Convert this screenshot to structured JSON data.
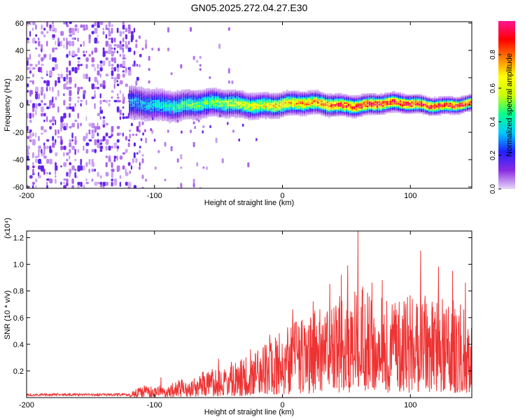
{
  "chart_data": [
    {
      "type": "heatmap",
      "title": "GN05.2025.272.04.27.E30",
      "xlabel": "Height of straight line (km)",
      "ylabel": "Frequency (Hz)",
      "xlim": [
        -200,
        148
      ],
      "ylim": [
        -61,
        61
      ],
      "xticks": [
        {
          "value": -200,
          "label": "-200"
        },
        {
          "value": -100,
          "label": "-100"
        },
        {
          "value": 0,
          "label": "0"
        },
        {
          "value": 100,
          "label": "100"
        }
      ],
      "yticks": [
        {
          "value": 60,
          "label": "60"
        },
        {
          "value": 40,
          "label": "40"
        },
        {
          "value": 20,
          "label": "20"
        },
        {
          "value": 0,
          "label": "0"
        },
        {
          "value": -20,
          "label": "-20"
        },
        {
          "value": -40,
          "label": "-40"
        },
        {
          "value": -60,
          "label": "-60"
        }
      ],
      "colorbar": {
        "label": "Normalized spectral amplitude",
        "range": [
          0,
          1
        ],
        "ticks": [
          {
            "value": 0.0,
            "label": "0.0"
          },
          {
            "value": 0.2,
            "label": "0.2"
          },
          {
            "value": 0.4,
            "label": "0.4"
          },
          {
            "value": 0.6,
            "label": "0.6"
          },
          {
            "value": 0.8,
            "label": "0.8"
          }
        ],
        "colors": [
          "#e8d8f8",
          "#8a2be2",
          "#2020ff",
          "#00c8ff",
          "#00ff90",
          "#c8ff00",
          "#ffff00",
          "#ff8000",
          "#ff0000",
          "#ff1493"
        ]
      },
      "signal_band": {
        "x_start": -120,
        "x_end": 148,
        "center_frequency": 0,
        "halfwidth_start": 10,
        "halfwidth_end": 4,
        "peak_amplitude_start": 0.3,
        "peak_amplitude_end": 0.95
      },
      "noise_region": {
        "x_start": -200,
        "x_end": -120,
        "frequency_range": [
          -61,
          61
        ],
        "amplitude": 0.15
      }
    },
    {
      "type": "line",
      "xlabel": "Height of straight line (km)",
      "ylabel": "SNR (10 * v/v)",
      "yscale_label": "(x10⁴)",
      "xlim": [
        -200,
        148
      ],
      "ylim": [
        0,
        1.25
      ],
      "color": "#ee3333",
      "xticks": [
        {
          "value": -200,
          "label": "-200"
        },
        {
          "value": -100,
          "label": "-100"
        },
        {
          "value": 0,
          "label": "0"
        },
        {
          "value": 100,
          "label": "100"
        }
      ],
      "yticks": [
        {
          "value": 0.2,
          "label": "0.2"
        },
        {
          "value": 0.4,
          "label": "0.4"
        },
        {
          "value": 0.6,
          "label": "0.6"
        },
        {
          "value": 0.8,
          "label": "0.8"
        },
        {
          "value": 1.0,
          "label": "1.0"
        },
        {
          "value": 1.2,
          "label": "1.2"
        }
      ],
      "envelope": [
        {
          "x": -200,
          "y": 0.03
        },
        {
          "x": -120,
          "y": 0.03
        },
        {
          "x": -110,
          "y": 0.09
        },
        {
          "x": -90,
          "y": 0.1
        },
        {
          "x": -60,
          "y": 0.2
        },
        {
          "x": -30,
          "y": 0.3
        },
        {
          "x": 0,
          "y": 0.5
        },
        {
          "x": 30,
          "y": 0.7
        },
        {
          "x": 60,
          "y": 0.85
        },
        {
          "x": 90,
          "y": 0.75
        },
        {
          "x": 110,
          "y": 0.8
        },
        {
          "x": 148,
          "y": 0.7
        }
      ],
      "peaks": [
        {
          "x": 59,
          "y": 1.25
        },
        {
          "x": 51,
          "y": 0.99
        },
        {
          "x": 46,
          "y": 0.92
        },
        {
          "x": 70,
          "y": 0.86
        },
        {
          "x": 78,
          "y": 0.88
        },
        {
          "x": 108,
          "y": 1.1
        },
        {
          "x": 122,
          "y": 0.98
        },
        {
          "x": 133,
          "y": 0.95
        },
        {
          "x": 143,
          "y": 0.86
        },
        {
          "x": 37,
          "y": 0.85
        },
        {
          "x": 24,
          "y": 0.72
        },
        {
          "x": 8,
          "y": 0.66
        },
        {
          "x": -10,
          "y": 0.47
        },
        {
          "x": -25,
          "y": 0.36
        },
        {
          "x": -50,
          "y": 0.29
        },
        {
          "x": -95,
          "y": 0.15
        }
      ]
    }
  ]
}
